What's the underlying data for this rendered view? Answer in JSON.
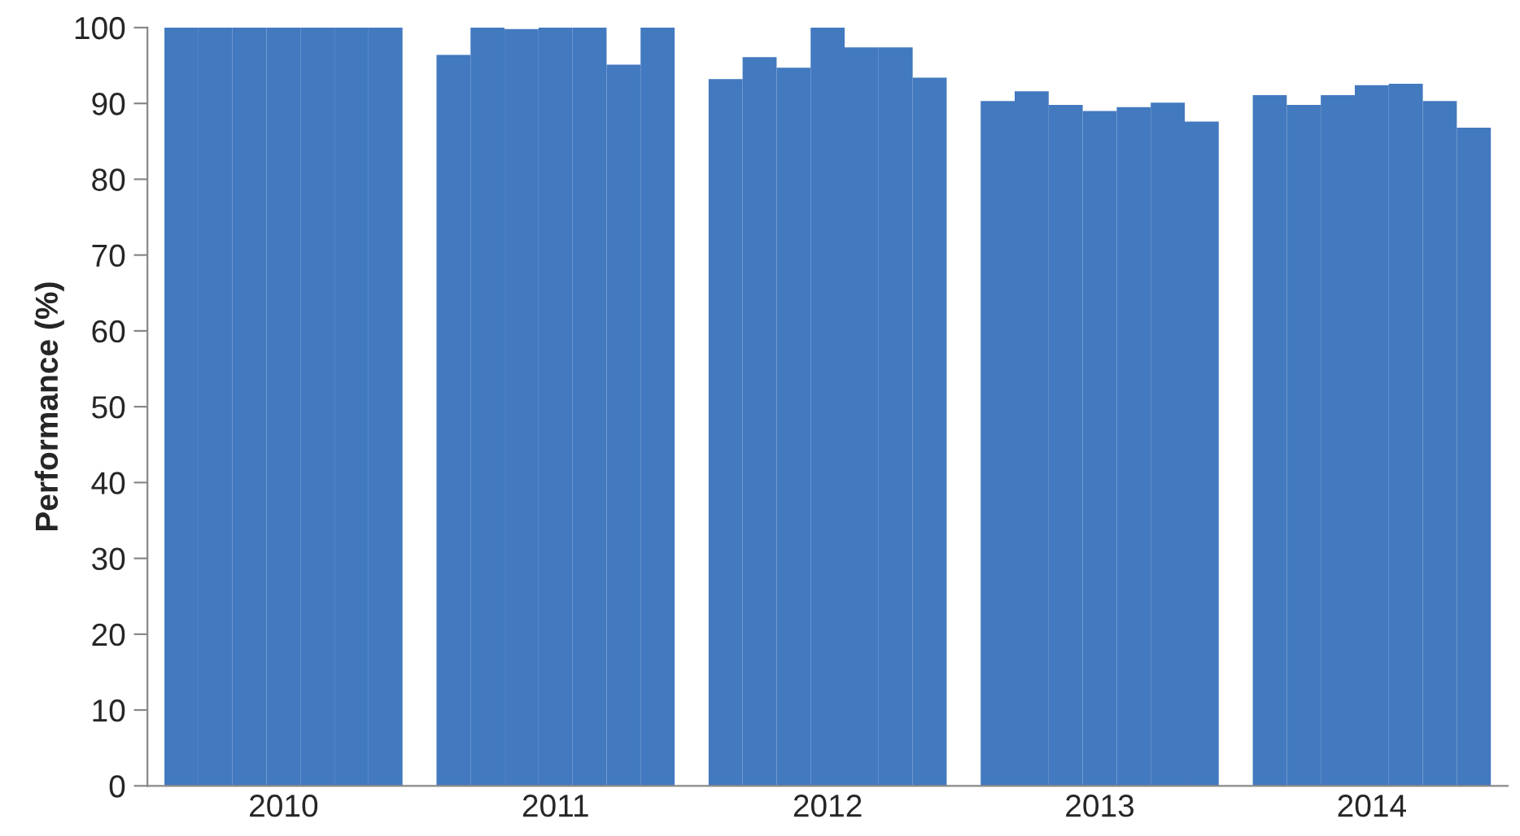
{
  "chart_data": {
    "type": "bar",
    "ylabel": "Performance (%)",
    "categories": [
      "2010",
      "2011",
      "2012",
      "2013",
      "2014"
    ],
    "series": [
      {
        "color": "#4279bf",
        "values": [
          100,
          96.4,
          93.2,
          90.3,
          91.1
        ]
      },
      {
        "color": "#4279bf",
        "values": [
          100,
          100,
          96.1,
          91.6,
          89.8
        ]
      },
      {
        "color": "#4279bf",
        "values": [
          100,
          99.8,
          94.7,
          89.8,
          91.1
        ]
      },
      {
        "color": "#4279bf",
        "values": [
          100,
          100,
          100,
          89.0,
          92.4
        ]
      },
      {
        "color": "#4279bf",
        "values": [
          100,
          100,
          97.4,
          89.5,
          92.6
        ]
      },
      {
        "color": "#4279bf",
        "values": [
          100,
          95.1,
          97.4,
          90.1,
          90.3
        ]
      },
      {
        "color": "#4279bf",
        "values": [
          100,
          100,
          93.4,
          87.6,
          86.8
        ]
      }
    ],
    "ylim": [
      0,
      100
    ],
    "yticks": [
      0,
      10,
      20,
      30,
      40,
      50,
      60,
      70,
      80,
      90,
      100
    ],
    "grid": false,
    "legend": false
  }
}
